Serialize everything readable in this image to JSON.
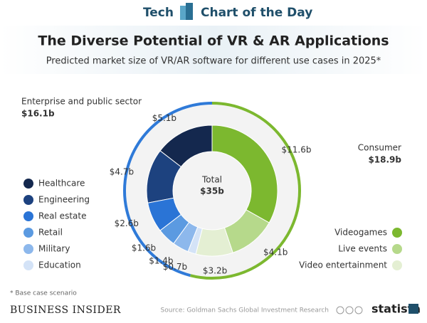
{
  "header": {
    "left": "Tech",
    "right": "Chart of the Day"
  },
  "chart_data": {
    "type": "donut",
    "title": "The Diverse Potential of VR & AR Applications",
    "subtitle": "Predicted market size of VR/AR software for different use cases in 2025*",
    "total_label": "Total",
    "total": 35,
    "total_value_label": "$35b",
    "groups": [
      {
        "name": "Consumer",
        "value": 18.9,
        "value_label": "$18.9b",
        "color": "#7cb82f",
        "direction": "clockwise",
        "legend": "right",
        "categories": [
          "Videogames",
          "Live events",
          "Video entertainment"
        ],
        "values": [
          11.6,
          4.1,
          3.2
        ],
        "value_labels": [
          "$11.6b",
          "$4.1b",
          "$3.2b"
        ],
        "colors": [
          "#7cb82f",
          "#b6d98b",
          "#e4efd3"
        ]
      },
      {
        "name": "Enterprise and public sector",
        "value": 16.1,
        "value_label": "$16.1b",
        "color": "#2f7ad8",
        "direction": "counterclockwise",
        "legend": "left",
        "categories": [
          "Healthcare",
          "Engineering",
          "Real estate",
          "Retail",
          "Military",
          "Education"
        ],
        "values": [
          5.1,
          4.7,
          2.6,
          1.6,
          1.4,
          0.7
        ],
        "value_labels": [
          "$5.1b",
          "$4.7b",
          "$2.6b",
          "$1.6b",
          "$1.4b",
          "$0.7b"
        ],
        "colors": [
          "#14284e",
          "#1d427f",
          "#2a74d6",
          "#5b9ae1",
          "#8db8ec",
          "#d4e3f7"
        ]
      }
    ],
    "footnote": "* Base case scenario"
  },
  "footer": {
    "brand": "BUSINESS INSIDER",
    "source": "Source: Goldman Sachs Global Investment Research",
    "logo": "statista"
  }
}
